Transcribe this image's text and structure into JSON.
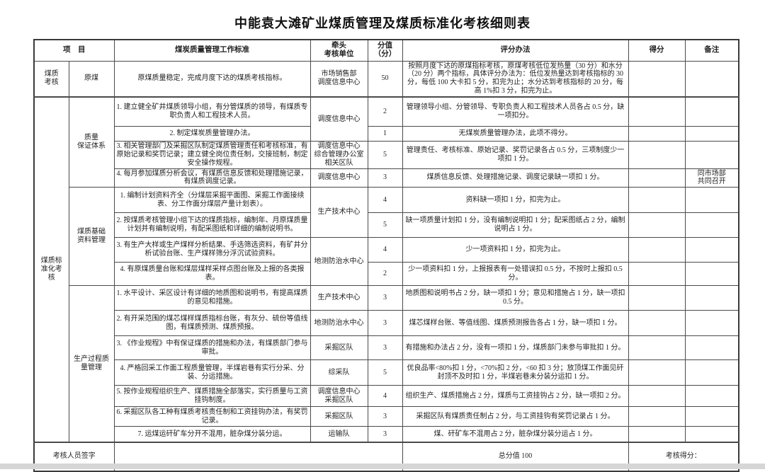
{
  "title": "中能袁大滩矿业煤质管理及煤质标准化考核细则表",
  "colors": {
    "border": "#4a4a4a",
    "text": "#1f1f1f",
    "background": "#ffffff",
    "page_edge": "#d6d6d6"
  },
  "table": {
    "rows": [
      {
        "cells": [
          {
            "name": "header-item",
            "t": "项　目",
            "cs": 2
          },
          {
            "name": "header-standard",
            "t": "煤炭质量管理工作标准"
          },
          {
            "name": "header-lead-unit",
            "t": "牵头\n考核单位"
          },
          {
            "name": "header-score",
            "t": "分值（分）"
          },
          {
            "name": "header-method",
            "t": "评分办法"
          },
          {
            "name": "header-points",
            "t": "得分"
          },
          {
            "name": "header-remark",
            "t": "备注"
          }
        ]
      },
      {
        "cells": [
          {
            "name": "category-cell",
            "t": "煤质\n考核"
          },
          {
            "name": "section-cell",
            "t": "原煤"
          },
          {
            "name": "standard-cell",
            "t": "原煤质量稳定，完成月度下达的煤质考核指标。"
          },
          {
            "name": "lead-unit-cell",
            "t": "市场销售部\n调度信息中心"
          },
          {
            "name": "score-cell",
            "t": "50"
          },
          {
            "name": "method-cell",
            "t": "按照月度下达的原煤指标考核，原煤考核低位发热量（30 分）和水分（20 分）两个指标，具体评分办法为：低位发热量达到考核指标的 30 分，每低 100 大卡扣 5 分，扣完为止；水分达到考核指标的 20 分，每高 1%扣 3 分，扣完为止。"
          },
          {
            "name": "points-cell",
            "t": ""
          },
          {
            "name": "remark-cell",
            "t": ""
          }
        ]
      },
      {
        "cells": [
          {
            "name": "category-cell",
            "t": "煤质标\n准化考\n核",
            "rs": 15
          },
          {
            "name": "section-cell",
            "t": "质量\n保证体系",
            "rs": 4
          },
          {
            "name": "standard-cell",
            "t": "1. 建立健全矿井煤质领导小组，有分管煤质的领导，有煤质专职负责人和工程技术人员。"
          },
          {
            "name": "lead-unit-cell",
            "t": "调度信息中心",
            "rs": 2
          },
          {
            "name": "score-cell",
            "t": "2"
          },
          {
            "name": "method-cell",
            "t": "管理领导小组、分管领导、专职负责人和工程技术人员各占 0.5 分，缺一项扣分。"
          },
          {
            "name": "points-cell",
            "t": ""
          },
          {
            "name": "remark-cell",
            "t": ""
          }
        ]
      },
      {
        "cells": [
          {
            "name": "standard-cell",
            "t": "2. 制定煤炭质量管理办法。"
          },
          {
            "name": "score-cell",
            "t": "1"
          },
          {
            "name": "method-cell",
            "t": "无煤炭质量管理办法，此项不得分。"
          },
          {
            "name": "points-cell",
            "t": ""
          },
          {
            "name": "remark-cell",
            "t": ""
          }
        ]
      },
      {
        "cells": [
          {
            "name": "standard-cell",
            "t": "3. 相关管理部门及采掘区队制定煤质管理责任和考核标准，有原始记录和奖罚记录；建立健全岗位责任制，交接班制，制定安全操作规程。"
          },
          {
            "name": "lead-unit-cell",
            "t": "调度信息中心\n综合管理办公室\n相关区队"
          },
          {
            "name": "score-cell",
            "t": "5"
          },
          {
            "name": "method-cell",
            "t": "管理责任、考核标准、原始记录、奖罚记录各占 0.5 分，三项制度少一项扣 1 分。"
          },
          {
            "name": "points-cell",
            "t": ""
          },
          {
            "name": "remark-cell",
            "t": ""
          }
        ]
      },
      {
        "cells": [
          {
            "name": "standard-cell",
            "t": "4. 每月参加煤质分析会议，有煤质信息反馈和处理措施记录，有煤质调度记录。"
          },
          {
            "name": "lead-unit-cell",
            "t": "调度信息中心"
          },
          {
            "name": "score-cell",
            "t": "3"
          },
          {
            "name": "method-cell",
            "t": "煤质信息反馈、处理措施记录、调度记录缺一项扣 1 分。"
          },
          {
            "name": "points-cell",
            "t": ""
          },
          {
            "name": "remark-cell",
            "t": "同市场部\n共同召开"
          }
        ]
      },
      {
        "cells": [
          {
            "name": "section-cell",
            "t": "煤质基础\n资料管理",
            "rs": 4
          },
          {
            "name": "standard-cell",
            "t": "1. 编制计划资料齐全（分煤层采掘平面图、采掘工作面接续表、分工作面分煤层产量计划表）。"
          },
          {
            "name": "lead-unit-cell",
            "t": "生产技术中心",
            "rs": 2
          },
          {
            "name": "score-cell",
            "t": "4"
          },
          {
            "name": "method-cell",
            "t": "资料缺一项扣 1 分，扣完为止。"
          },
          {
            "name": "points-cell",
            "t": ""
          },
          {
            "name": "remark-cell",
            "t": ""
          }
        ]
      },
      {
        "cells": [
          {
            "name": "standard-cell",
            "t": "2. 按煤质考核管理小组下达的煤质指标，编制年、月原煤质量计划并有编制说明，有配采图纸和详细的编制说明书。"
          },
          {
            "name": "score-cell",
            "t": "5"
          },
          {
            "name": "method-cell",
            "t": "缺一项质量计划扣 1 分，没有编制说明扣 1 分；配采图纸占 2 分，编制说明占 1 分。"
          },
          {
            "name": "points-cell",
            "t": ""
          },
          {
            "name": "remark-cell",
            "t": ""
          }
        ]
      },
      {
        "cells": [
          {
            "name": "standard-cell",
            "t": "3. 有生产大样或生产煤样分析结果、手选筛选资料，有矿井分析试验台账、生产煤样筛分浮沉试验资料。"
          },
          {
            "name": "lead-unit-cell",
            "t": "地测防治水中心",
            "rs": 2
          },
          {
            "name": "score-cell",
            "t": "4"
          },
          {
            "name": "method-cell",
            "t": "少一项资料扣 1 分，扣完为止。"
          },
          {
            "name": "points-cell",
            "t": ""
          },
          {
            "name": "remark-cell",
            "t": ""
          }
        ]
      },
      {
        "cells": [
          {
            "name": "standard-cell",
            "t": "4. 有原煤质量台账和煤层煤样采样点图台账及上报的各类报表。"
          },
          {
            "name": "score-cell",
            "t": "2"
          },
          {
            "name": "method-cell",
            "t": "少一项资料扣 1 分，上报报表有一处错误扣 0.5 分，不按时上报扣 0.5 分。"
          },
          {
            "name": "points-cell",
            "t": ""
          },
          {
            "name": "remark-cell",
            "t": ""
          }
        ]
      },
      {
        "cells": [
          {
            "name": "section-cell",
            "t": "生产过程质\n量管理",
            "rs": 7
          },
          {
            "name": "standard-cell",
            "t": "1. 水平设计、采区设计有详细的地质图和说明书，有提高煤质的意见和措施。"
          },
          {
            "name": "lead-unit-cell",
            "t": "生产技术中心"
          },
          {
            "name": "score-cell",
            "t": "3"
          },
          {
            "name": "method-cell",
            "t": "地质图和说明书占 2 分，缺一项扣 1 分；意见和措施占 1 分，缺一项扣 0.5 分。"
          },
          {
            "name": "points-cell",
            "t": ""
          },
          {
            "name": "remark-cell",
            "t": ""
          }
        ]
      },
      {
        "cells": [
          {
            "name": "standard-cell",
            "t": "2. 有开采范围的煤芯煤样煤质指标台账，有灰分、硫份等值线图，有煤质预测、煤质预报。"
          },
          {
            "name": "lead-unit-cell",
            "t": "地测防治水中心"
          },
          {
            "name": "score-cell",
            "t": "3"
          },
          {
            "name": "method-cell",
            "t": "煤芯煤样台账、等值线图、煤质预测报告各占 1 分，缺一项扣 1 分。"
          },
          {
            "name": "points-cell",
            "t": ""
          },
          {
            "name": "remark-cell",
            "t": ""
          }
        ]
      },
      {
        "cells": [
          {
            "name": "standard-cell",
            "t": "3. 《作业规程》中有保证煤质的措施和办法，有煤质部门参与审批。"
          },
          {
            "name": "lead-unit-cell",
            "t": "采掘区队"
          },
          {
            "name": "score-cell",
            "t": "3"
          },
          {
            "name": "method-cell",
            "t": "有措施和办法占 2 分，没有一项扣 1 分，煤质部门未参与审批扣 1 分。"
          },
          {
            "name": "points-cell",
            "t": ""
          },
          {
            "name": "remark-cell",
            "t": ""
          }
        ]
      },
      {
        "cells": [
          {
            "name": "standard-cell",
            "t": "4. 严格回采工作面工程质量管理，半煤岩巷有实行分采、分装、分运措施。"
          },
          {
            "name": "lead-unit-cell",
            "t": "综采队"
          },
          {
            "name": "score-cell",
            "t": "5"
          },
          {
            "name": "method-cell",
            "t": "优良品率<80%扣 1 分，<70%扣 2 分，<60 扣 3 分；放顶煤工作面见矸封顶不及时扣 1 分，半煤岩巷未分装分运扣 1 分。"
          },
          {
            "name": "points-cell",
            "t": ""
          },
          {
            "name": "remark-cell",
            "t": ""
          }
        ]
      },
      {
        "cells": [
          {
            "name": "standard-cell",
            "t": "5. 按作业规程组织生产、煤质措施全部落实，实行质量与工资挂钩制度。"
          },
          {
            "name": "lead-unit-cell",
            "t": "调度信息中心\n采掘区队"
          },
          {
            "name": "score-cell",
            "t": "4"
          },
          {
            "name": "method-cell",
            "t": "组织生产、煤质措施占 2 分，煤质与工资挂钩占 2 分，缺一项扣 2 分。"
          },
          {
            "name": "points-cell",
            "t": ""
          },
          {
            "name": "remark-cell",
            "t": ""
          }
        ]
      },
      {
        "cells": [
          {
            "name": "standard-cell",
            "t": "6. 采掘区队各工种有煤质考核责任制和工资挂钩办法，有奖罚记录。"
          },
          {
            "name": "lead-unit-cell",
            "t": "采掘区队"
          },
          {
            "name": "score-cell",
            "t": "3"
          },
          {
            "name": "method-cell",
            "t": "采掘区队有煤质责任制占 2 分，与工资挂钩有奖罚记录占 1 分。"
          },
          {
            "name": "points-cell",
            "t": ""
          },
          {
            "name": "remark-cell",
            "t": ""
          }
        ]
      },
      {
        "cells": [
          {
            "name": "standard-cell",
            "t": "7. 运煤运矸矿车分开不混用，脏杂煤分装分运。"
          },
          {
            "name": "lead-unit-cell",
            "t": "运输队"
          },
          {
            "name": "score-cell",
            "t": "3"
          },
          {
            "name": "method-cell",
            "t": "煤、矸矿车不混用占 2 分，脏杂煤分装分运占 1 分。"
          },
          {
            "name": "points-cell",
            "t": ""
          },
          {
            "name": "remark-cell",
            "t": ""
          }
        ]
      },
      {
        "cells": [
          {
            "name": "signer-label-cell",
            "t": "考核人员签字",
            "cs": 2
          },
          {
            "name": "signature-blank-cell",
            "t": "",
            "cs": 3
          },
          {
            "name": "total-score-cell",
            "t": "总分值 100"
          },
          {
            "name": "assess-score-cell",
            "t": "考核得分：",
            "cs": 2
          }
        ]
      }
    ]
  }
}
